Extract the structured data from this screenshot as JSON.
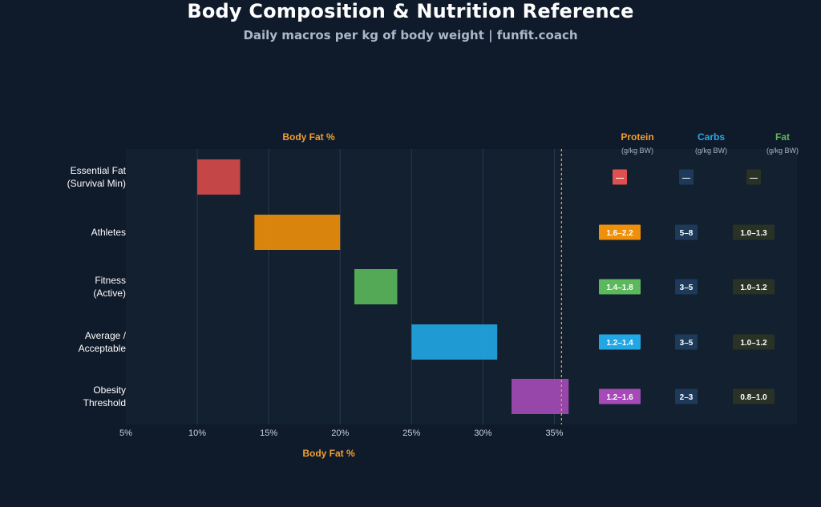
{
  "header": {
    "title": "Body Composition & Nutrition Reference",
    "subtitle": "Daily macros per kg of body weight | funfit.coach"
  },
  "colors": {
    "background": "#0f1a2a",
    "plot_bg": "#12202f",
    "grid": "#2a3a4c",
    "accent_orange": "#f0a030",
    "carbs_blue": "#2aa8e8",
    "fat_green": "#5cb85c",
    "carb_badge_bg": "#1e3a5a",
    "fat_badge_bg": "#2a3226"
  },
  "chart_data": {
    "type": "bar",
    "orientation": "horizontal-range",
    "top_label": "Body Fat %",
    "xlabel": "Body Fat %",
    "xlim": [
      5,
      37.5
    ],
    "xticks": [
      5,
      10,
      15,
      20,
      25,
      30,
      35
    ],
    "xtick_labels": [
      "5%",
      "10%",
      "15%",
      "20%",
      "25%",
      "30%",
      "35%"
    ],
    "grid": true,
    "reference_line": {
      "x": 35.5,
      "style": "dashed",
      "color": "#f0a030"
    },
    "categories": [
      "Essential Fat\n(Survival Min)",
      "Athletes",
      "Fitness\n(Active)",
      "Average /\nAcceptable",
      "Obesity\nThreshold"
    ],
    "ranges": [
      {
        "start": 10,
        "end": 13,
        "color": "#d84a4a"
      },
      {
        "start": 14,
        "end": 20,
        "color": "#f0900a"
      },
      {
        "start": 21,
        "end": 24,
        "color": "#5cb85c"
      },
      {
        "start": 25,
        "end": 31,
        "color": "#22a7e6"
      },
      {
        "start": 32,
        "end": 36,
        "color": "#a64ab8"
      }
    ],
    "macros": {
      "headers": [
        {
          "name": "Protein",
          "unit": "(g/kg BW)",
          "color": "#f0a030"
        },
        {
          "name": "Carbs",
          "unit": "(g/kg BW)",
          "color": "#2aa8e8"
        },
        {
          "name": "Fat",
          "unit": "(g/kg BW)",
          "color": "#5cb85c"
        }
      ],
      "rows": [
        {
          "protein": "—",
          "carbs": "—",
          "fat": "—",
          "protein_color": "#e05050"
        },
        {
          "protein": "1.6–2.2",
          "carbs": "5–8",
          "fat": "1.0–1.3",
          "protein_color": "#f0900a"
        },
        {
          "protein": "1.4–1.8",
          "carbs": "3–5",
          "fat": "1.0–1.2",
          "protein_color": "#5cb85c"
        },
        {
          "protein": "1.2–1.4",
          "carbs": "3–5",
          "fat": "1.0–1.2",
          "protein_color": "#22a7e6"
        },
        {
          "protein": "1.2–1.6",
          "carbs": "2–3",
          "fat": "0.8–1.0",
          "protein_color": "#a64ab8"
        }
      ]
    }
  }
}
